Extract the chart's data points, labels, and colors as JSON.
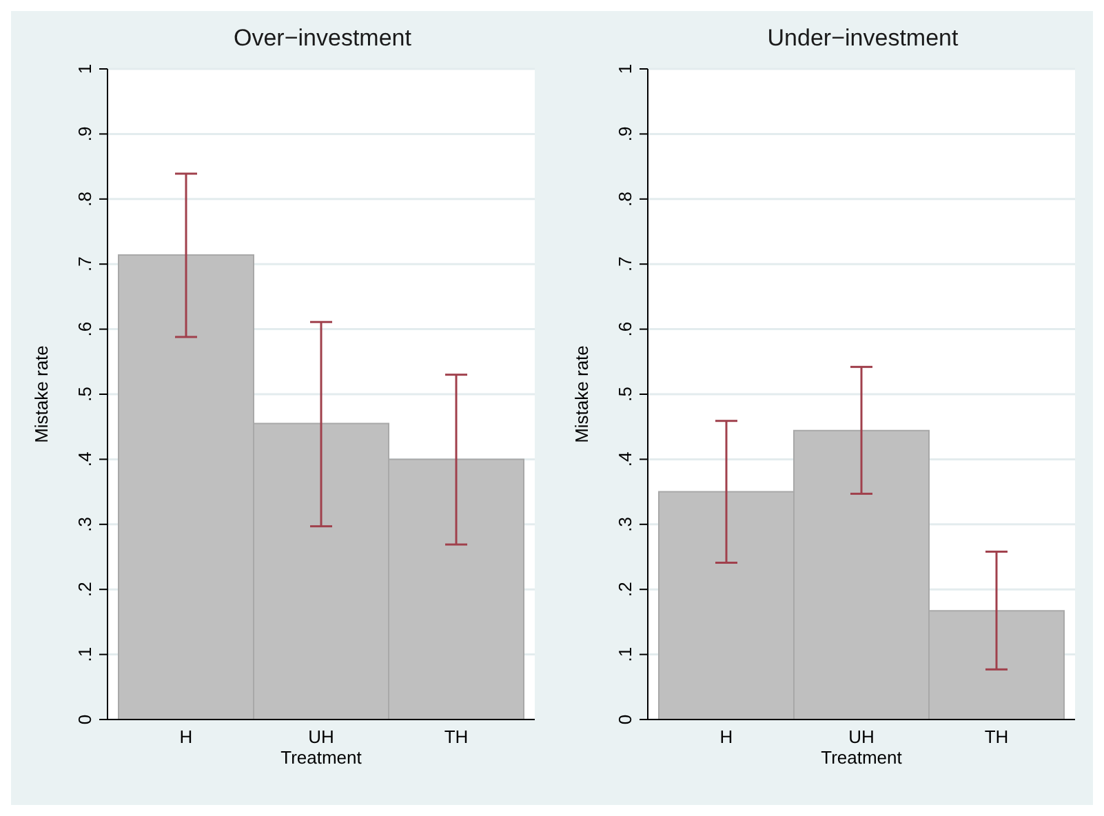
{
  "chart_data": [
    {
      "type": "bar",
      "title": "Over−investment",
      "xlabel": "Treatment",
      "ylabel": "Mistake rate",
      "categories": [
        "H",
        "UH",
        "TH"
      ],
      "values": [
        0.714,
        0.455,
        0.4
      ],
      "color": "#bfbfbf",
      "errors": [
        [
          0.588,
          0.839
        ],
        [
          0.297,
          0.611
        ],
        [
          0.269,
          0.53
        ]
      ],
      "ylim": [
        0,
        1
      ],
      "yticks": [
        {
          "value": 0,
          "label": "0"
        },
        {
          "value": 0.1,
          "label": ".1"
        },
        {
          "value": 0.2,
          "label": ".2"
        },
        {
          "value": 0.3,
          "label": ".3"
        },
        {
          "value": 0.4,
          "label": ".4"
        },
        {
          "value": 0.5,
          "label": ".5"
        },
        {
          "value": 0.6,
          "label": ".6"
        },
        {
          "value": 0.7,
          "label": ".7"
        },
        {
          "value": 0.8,
          "label": ".8"
        },
        {
          "value": 0.9,
          "label": ".9"
        },
        {
          "value": 1,
          "label": "1"
        }
      ],
      "grid": "y"
    },
    {
      "type": "bar",
      "title": "Under−investment",
      "xlabel": "Treatment",
      "ylabel": "Mistake rate",
      "categories": [
        "H",
        "UH",
        "TH"
      ],
      "values": [
        0.35,
        0.444,
        0.167
      ],
      "color": "#bfbfbf",
      "errors": [
        [
          0.241,
          0.459
        ],
        [
          0.347,
          0.542
        ],
        [
          0.077,
          0.258
        ]
      ],
      "ylim": [
        0,
        1
      ],
      "yticks": [
        {
          "value": 0,
          "label": "0"
        },
        {
          "value": 0.1,
          "label": ".1"
        },
        {
          "value": 0.2,
          "label": ".2"
        },
        {
          "value": 0.3,
          "label": ".3"
        },
        {
          "value": 0.4,
          "label": ".4"
        },
        {
          "value": 0.5,
          "label": ".5"
        },
        {
          "value": 0.6,
          "label": ".6"
        },
        {
          "value": 0.7,
          "label": ".7"
        },
        {
          "value": 0.8,
          "label": ".8"
        },
        {
          "value": 0.9,
          "label": ".9"
        },
        {
          "value": 1,
          "label": "1"
        }
      ],
      "grid": "y"
    }
  ]
}
